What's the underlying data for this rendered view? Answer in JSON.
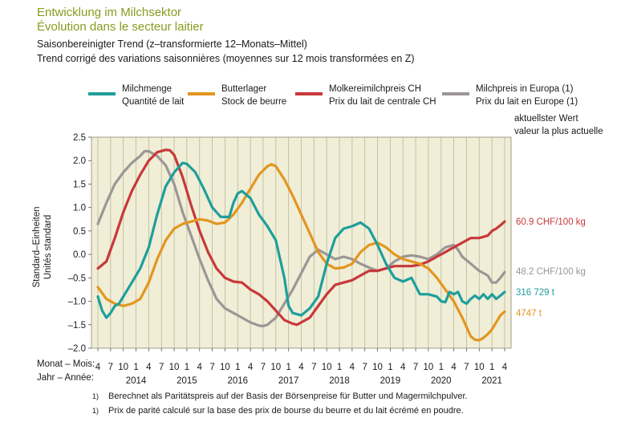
{
  "header": {
    "title_de": "Entwicklung im Milchsektor",
    "title_fr": "Évolution dans le secteur laitier",
    "subtitle_de": "Saisonbereinigter Trend (z–transformierte 12–Monats–Mittel)",
    "subtitle_fr": "Trend corrigé des variations saisonnières (moyennes sur 12 mois transformées en Z)"
  },
  "latest_header": {
    "line1": "aktuellster Wert",
    "line2": "valeur la plus actuelle"
  },
  "y_axis_label": {
    "line1": "Standard–Einheiten",
    "line2": "Unités standard"
  },
  "x_axis": {
    "month_row_label": "Monat – Mois:",
    "year_row_label": "Jahr – Année:"
  },
  "footnotes": [
    {
      "marker": "1)",
      "text": "Berechnet als Paritätspreis auf der Basis der Börsenpreise für Butter und Magermilchpulver."
    },
    {
      "marker": "1)",
      "text": "Prix de parité calculé sur la base des prix de bourse du beurre et du lait écrémé en poudre."
    }
  ],
  "chart_data": {
    "type": "line",
    "ylim": [
      -2.0,
      2.5
    ],
    "yticks": [
      "2.5",
      "2.0",
      "1.5",
      "1.0",
      "0.5",
      "0.0",
      "–0.5",
      "–1.0",
      "–1.5",
      "–2.0"
    ],
    "ytick_values": [
      2.5,
      2.0,
      1.5,
      1.0,
      0.5,
      0.0,
      -0.5,
      -1.0,
      -1.5,
      -2.0
    ],
    "x_start": "2013-04",
    "x_end": "2021-04",
    "month_ticks": [
      "4",
      "7",
      "10",
      "1",
      "4",
      "7",
      "10",
      "1",
      "4",
      "7",
      "10",
      "1",
      "4",
      "7",
      "10",
      "1",
      "4",
      "7",
      "10",
      "1",
      "4",
      "7",
      "10",
      "1",
      "4",
      "7",
      "10",
      "1",
      "4",
      "7",
      "10",
      "1",
      "4"
    ],
    "year_labels": [
      {
        "label": "2014",
        "at": "2014-01"
      },
      {
        "label": "2015",
        "at": "2015-01"
      },
      {
        "label": "2016",
        "at": "2016-01"
      },
      {
        "label": "2017",
        "at": "2017-01"
      },
      {
        "label": "2018",
        "at": "2018-01"
      },
      {
        "label": "2019",
        "at": "2019-01"
      },
      {
        "label": "2020",
        "at": "2020-01"
      },
      {
        "label": "2021",
        "at": "2021-01"
      }
    ],
    "grid": "vertical",
    "plot_background": "#f0eed6",
    "series": [
      {
        "name": "Milchmenge",
        "name_fr": "Quantité de lait",
        "color": "#1e9f9c",
        "latest_label": "316 729 t",
        "points": [
          [
            "2013-04",
            -0.9
          ],
          [
            "2013-05",
            -1.2
          ],
          [
            "2013-06",
            -1.35
          ],
          [
            "2013-07",
            -1.25
          ],
          [
            "2013-08",
            -1.1
          ],
          [
            "2013-09",
            -1.05
          ],
          [
            "2013-10",
            -0.9
          ],
          [
            "2013-12",
            -0.6
          ],
          [
            "2014-02",
            -0.3
          ],
          [
            "2014-04",
            0.15
          ],
          [
            "2014-06",
            0.85
          ],
          [
            "2014-08",
            1.45
          ],
          [
            "2014-10",
            1.75
          ],
          [
            "2014-12",
            1.95
          ],
          [
            "2015-01",
            1.93
          ],
          [
            "2015-03",
            1.75
          ],
          [
            "2015-05",
            1.4
          ],
          [
            "2015-07",
            1.0
          ],
          [
            "2015-09",
            0.8
          ],
          [
            "2015-11",
            0.8
          ],
          [
            "2015-12",
            1.1
          ],
          [
            "2016-01",
            1.3
          ],
          [
            "2016-02",
            1.35
          ],
          [
            "2016-04",
            1.2
          ],
          [
            "2016-06",
            0.85
          ],
          [
            "2016-08",
            0.6
          ],
          [
            "2016-10",
            0.3
          ],
          [
            "2016-12",
            -0.5
          ],
          [
            "2017-01",
            -1.1
          ],
          [
            "2017-02",
            -1.25
          ],
          [
            "2017-04",
            -1.3
          ],
          [
            "2017-06",
            -1.15
          ],
          [
            "2017-08",
            -0.9
          ],
          [
            "2017-10",
            -0.2
          ],
          [
            "2017-12",
            0.35
          ],
          [
            "2018-02",
            0.55
          ],
          [
            "2018-04",
            0.6
          ],
          [
            "2018-06",
            0.68
          ],
          [
            "2018-08",
            0.55
          ],
          [
            "2018-10",
            0.2
          ],
          [
            "2018-12",
            -0.2
          ],
          [
            "2019-02",
            -0.5
          ],
          [
            "2019-04",
            -0.58
          ],
          [
            "2019-06",
            -0.5
          ],
          [
            "2019-08",
            -0.85
          ],
          [
            "2019-10",
            -0.85
          ],
          [
            "2019-12",
            -0.9
          ],
          [
            "2020-01",
            -1.0
          ],
          [
            "2020-02",
            -1.02
          ],
          [
            "2020-03",
            -0.8
          ],
          [
            "2020-04",
            -0.85
          ],
          [
            "2020-05",
            -0.8
          ],
          [
            "2020-06",
            -1.0
          ],
          [
            "2020-07",
            -1.05
          ],
          [
            "2020-08",
            -0.95
          ],
          [
            "2020-09",
            -0.88
          ],
          [
            "2020-10",
            -0.95
          ],
          [
            "2020-11",
            -0.85
          ],
          [
            "2020-12",
            -0.95
          ],
          [
            "2021-01",
            -0.85
          ],
          [
            "2021-02",
            -0.95
          ],
          [
            "2021-03",
            -0.88
          ],
          [
            "2021-04",
            -0.8
          ]
        ]
      },
      {
        "name": "Butterlager",
        "name_fr": "Stock de beurre",
        "color": "#e3961f",
        "latest_label": "4747 t",
        "points": [
          [
            "2013-04",
            -0.7
          ],
          [
            "2013-06",
            -0.95
          ],
          [
            "2013-08",
            -1.05
          ],
          [
            "2013-10",
            -1.1
          ],
          [
            "2013-12",
            -1.05
          ],
          [
            "2014-02",
            -0.95
          ],
          [
            "2014-04",
            -0.6
          ],
          [
            "2014-06",
            -0.1
          ],
          [
            "2014-08",
            0.3
          ],
          [
            "2014-10",
            0.55
          ],
          [
            "2014-12",
            0.65
          ],
          [
            "2015-02",
            0.7
          ],
          [
            "2015-04",
            0.75
          ],
          [
            "2015-06",
            0.72
          ],
          [
            "2015-08",
            0.65
          ],
          [
            "2015-10",
            0.68
          ],
          [
            "2015-12",
            0.85
          ],
          [
            "2016-02",
            1.1
          ],
          [
            "2016-04",
            1.4
          ],
          [
            "2016-06",
            1.7
          ],
          [
            "2016-08",
            1.88
          ],
          [
            "2016-09",
            1.92
          ],
          [
            "2016-10",
            1.88
          ],
          [
            "2016-12",
            1.6
          ],
          [
            "2017-02",
            1.25
          ],
          [
            "2017-04",
            0.85
          ],
          [
            "2017-06",
            0.45
          ],
          [
            "2017-08",
            0.05
          ],
          [
            "2017-10",
            -0.2
          ],
          [
            "2017-12",
            -0.3
          ],
          [
            "2018-02",
            -0.28
          ],
          [
            "2018-04",
            -0.2
          ],
          [
            "2018-06",
            0.05
          ],
          [
            "2018-08",
            0.2
          ],
          [
            "2018-10",
            0.25
          ],
          [
            "2018-12",
            0.15
          ],
          [
            "2019-02",
            0.0
          ],
          [
            "2019-04",
            -0.1
          ],
          [
            "2019-06",
            -0.15
          ],
          [
            "2019-08",
            -0.2
          ],
          [
            "2019-10",
            -0.3
          ],
          [
            "2019-12",
            -0.5
          ],
          [
            "2020-02",
            -0.75
          ],
          [
            "2020-04",
            -1.0
          ],
          [
            "2020-06",
            -1.35
          ],
          [
            "2020-08",
            -1.75
          ],
          [
            "2020-09",
            -1.82
          ],
          [
            "2020-10",
            -1.83
          ],
          [
            "2020-11",
            -1.78
          ],
          [
            "2020-12",
            -1.7
          ],
          [
            "2021-01",
            -1.6
          ],
          [
            "2021-02",
            -1.45
          ],
          [
            "2021-03",
            -1.3
          ],
          [
            "2021-04",
            -1.22
          ]
        ]
      },
      {
        "name": "Molkereimilchpreis CH",
        "name_fr": "Prix du lait de centrale CH",
        "color": "#c8383a",
        "latest_label": "60.9 CHF/100 kg",
        "points": [
          [
            "2013-04",
            -0.3
          ],
          [
            "2013-06",
            -0.15
          ],
          [
            "2013-08",
            0.35
          ],
          [
            "2013-10",
            0.9
          ],
          [
            "2013-12",
            1.35
          ],
          [
            "2014-02",
            1.7
          ],
          [
            "2014-04",
            2.0
          ],
          [
            "2014-06",
            2.18
          ],
          [
            "2014-08",
            2.23
          ],
          [
            "2014-09",
            2.22
          ],
          [
            "2014-10",
            2.12
          ],
          [
            "2014-12",
            1.65
          ],
          [
            "2015-02",
            1.05
          ],
          [
            "2015-04",
            0.5
          ],
          [
            "2015-06",
            0.05
          ],
          [
            "2015-08",
            -0.3
          ],
          [
            "2015-10",
            -0.5
          ],
          [
            "2015-12",
            -0.58
          ],
          [
            "2016-02",
            -0.6
          ],
          [
            "2016-04",
            -0.75
          ],
          [
            "2016-06",
            -0.85
          ],
          [
            "2016-08",
            -1.0
          ],
          [
            "2016-10",
            -1.2
          ],
          [
            "2016-12",
            -1.4
          ],
          [
            "2017-02",
            -1.48
          ],
          [
            "2017-03",
            -1.5
          ],
          [
            "2017-04",
            -1.45
          ],
          [
            "2017-06",
            -1.35
          ],
          [
            "2017-08",
            -1.1
          ],
          [
            "2017-10",
            -0.85
          ],
          [
            "2017-12",
            -0.65
          ],
          [
            "2018-02",
            -0.6
          ],
          [
            "2018-04",
            -0.55
          ],
          [
            "2018-06",
            -0.45
          ],
          [
            "2018-08",
            -0.35
          ],
          [
            "2018-10",
            -0.35
          ],
          [
            "2018-12",
            -0.3
          ],
          [
            "2019-02",
            -0.25
          ],
          [
            "2019-04",
            -0.25
          ],
          [
            "2019-06",
            -0.25
          ],
          [
            "2019-08",
            -0.22
          ],
          [
            "2019-10",
            -0.15
          ],
          [
            "2019-12",
            -0.05
          ],
          [
            "2020-02",
            0.05
          ],
          [
            "2020-04",
            0.15
          ],
          [
            "2020-06",
            0.25
          ],
          [
            "2020-08",
            0.35
          ],
          [
            "2020-10",
            0.35
          ],
          [
            "2020-12",
            0.4
          ],
          [
            "2021-01",
            0.5
          ],
          [
            "2021-02",
            0.55
          ],
          [
            "2021-03",
            0.62
          ],
          [
            "2021-04",
            0.7
          ]
        ]
      },
      {
        "name": "Milchpreis in Europa (1)",
        "name_fr": "Prix du lait en Europe (1)",
        "color": "#9c9696",
        "latest_label": "48.2 CHF/100 kg",
        "points": [
          [
            "2013-04",
            0.65
          ],
          [
            "2013-06",
            1.1
          ],
          [
            "2013-08",
            1.5
          ],
          [
            "2013-10",
            1.75
          ],
          [
            "2013-12",
            1.95
          ],
          [
            "2014-02",
            2.1
          ],
          [
            "2014-03",
            2.2
          ],
          [
            "2014-04",
            2.2
          ],
          [
            "2014-06",
            2.1
          ],
          [
            "2014-08",
            1.9
          ],
          [
            "2014-10",
            1.5
          ],
          [
            "2014-12",
            0.9
          ],
          [
            "2015-02",
            0.4
          ],
          [
            "2015-04",
            -0.1
          ],
          [
            "2015-06",
            -0.55
          ],
          [
            "2015-08",
            -0.95
          ],
          [
            "2015-10",
            -1.15
          ],
          [
            "2015-12",
            -1.25
          ],
          [
            "2016-02",
            -1.35
          ],
          [
            "2016-04",
            -1.45
          ],
          [
            "2016-06",
            -1.52
          ],
          [
            "2016-07",
            -1.53
          ],
          [
            "2016-08",
            -1.5
          ],
          [
            "2016-10",
            -1.35
          ],
          [
            "2016-12",
            -1.05
          ],
          [
            "2017-02",
            -0.75
          ],
          [
            "2017-04",
            -0.4
          ],
          [
            "2017-06",
            -0.05
          ],
          [
            "2017-08",
            0.1
          ],
          [
            "2017-10",
            0.0
          ],
          [
            "2017-12",
            -0.1
          ],
          [
            "2018-02",
            -0.05
          ],
          [
            "2018-04",
            -0.1
          ],
          [
            "2018-06",
            -0.2
          ],
          [
            "2018-08",
            -0.28
          ],
          [
            "2018-10",
            -0.35
          ],
          [
            "2018-12",
            -0.3
          ],
          [
            "2019-02",
            -0.15
          ],
          [
            "2019-04",
            -0.05
          ],
          [
            "2019-06",
            -0.02
          ],
          [
            "2019-08",
            -0.05
          ],
          [
            "2019-10",
            -0.1
          ],
          [
            "2019-12",
            0.0
          ],
          [
            "2020-02",
            0.15
          ],
          [
            "2020-04",
            0.2
          ],
          [
            "2020-05",
            0.1
          ],
          [
            "2020-06",
            -0.05
          ],
          [
            "2020-08",
            -0.2
          ],
          [
            "2020-10",
            -0.35
          ],
          [
            "2020-12",
            -0.45
          ],
          [
            "2021-01",
            -0.6
          ],
          [
            "2021-02",
            -0.6
          ],
          [
            "2021-03",
            -0.5
          ],
          [
            "2021-04",
            -0.38
          ]
        ]
      }
    ]
  }
}
